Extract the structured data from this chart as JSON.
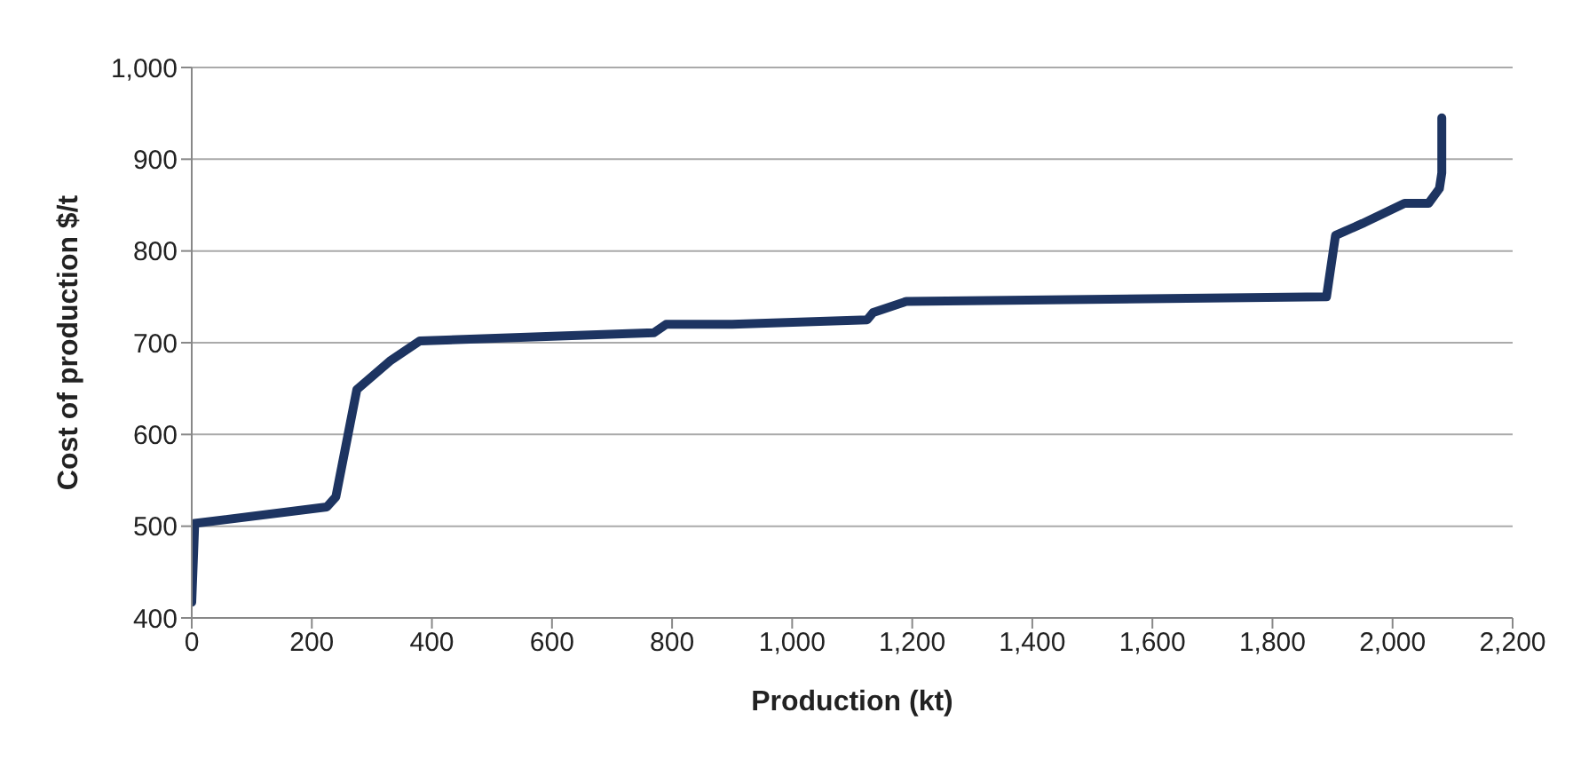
{
  "chart_data": {
    "type": "line",
    "xlabel": "Production (kt)",
    "ylabel": "Cost of production $/t",
    "series": [
      {
        "color": "#1d3461",
        "x": [
          0,
          5,
          225,
          240,
          275,
          330,
          380,
          770,
          790,
          900,
          1125,
          1135,
          1190,
          1890,
          1905,
          1950,
          2020,
          2060,
          2078,
          2082,
          2082
        ],
        "values": [
          417,
          503,
          521,
          532,
          649,
          680,
          702,
          711,
          720,
          720,
          725,
          733,
          745,
          750,
          817,
          830,
          852,
          852,
          868,
          885,
          945
        ]
      }
    ],
    "xlim": [
      0,
      2200
    ],
    "xticks": [
      {
        "value": 0,
        "label": "0"
      },
      {
        "value": 200,
        "label": "200"
      },
      {
        "value": 400,
        "label": "400"
      },
      {
        "value": 600,
        "label": "600"
      },
      {
        "value": 800,
        "label": "800"
      },
      {
        "value": 1000,
        "label": "1,000"
      },
      {
        "value": 1200,
        "label": "1,200"
      },
      {
        "value": 1400,
        "label": "1,400"
      },
      {
        "value": 1600,
        "label": "1,600"
      },
      {
        "value": 1800,
        "label": "1,800"
      },
      {
        "value": 2000,
        "label": "2,000"
      },
      {
        "value": 2200,
        "label": "2,200"
      }
    ],
    "ylim": [
      400,
      1000
    ],
    "yticks": [
      {
        "value": 400,
        "label": "400"
      },
      {
        "value": 500,
        "label": "500"
      },
      {
        "value": 600,
        "label": "600"
      },
      {
        "value": 700,
        "label": "700"
      },
      {
        "value": 800,
        "label": "800"
      },
      {
        "value": 900,
        "label": "900"
      },
      {
        "value": 1000,
        "label": "1,000"
      }
    ],
    "grid": "y",
    "marker": "none",
    "line_style": "solid"
  }
}
